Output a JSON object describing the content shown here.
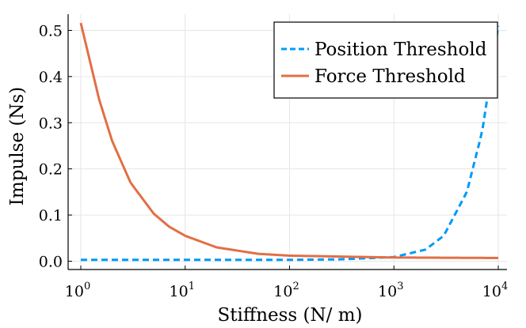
{
  "chart_data": {
    "type": "line",
    "title": "",
    "xlabel": "Stiffness (N/ m)",
    "ylabel": "Impulse (Ns)",
    "xscale": "log",
    "xlim": [
      1,
      10000
    ],
    "ylim": [
      -0.018,
      0.535
    ],
    "grid": true,
    "legend_position": "top-right",
    "x_ticks": [
      {
        "value": 1,
        "base": "10",
        "exp": "0"
      },
      {
        "value": 10,
        "base": "10",
        "exp": "1"
      },
      {
        "value": 100,
        "base": "10",
        "exp": "2"
      },
      {
        "value": 1000,
        "base": "10",
        "exp": "3"
      },
      {
        "value": 10000,
        "base": "10",
        "exp": "4"
      }
    ],
    "y_ticks": [
      {
        "value": 0.0,
        "label": "0.0"
      },
      {
        "value": 0.1,
        "label": "0.1"
      },
      {
        "value": 0.2,
        "label": "0.2"
      },
      {
        "value": 0.3,
        "label": "0.3"
      },
      {
        "value": 0.4,
        "label": "0.4"
      },
      {
        "value": 0.5,
        "label": "0.5"
      }
    ],
    "series": [
      {
        "name": "Position Threshold",
        "color": "#009AFA",
        "style": "dashed",
        "x": [
          1,
          10,
          100,
          300,
          1000,
          2000,
          3000,
          5000,
          7000,
          10000
        ],
        "y": [
          0.003,
          0.003,
          0.003,
          0.004,
          0.009,
          0.025,
          0.055,
          0.15,
          0.28,
          0.51
        ]
      },
      {
        "name": "Force Threshold",
        "color": "#E26F46",
        "style": "solid",
        "x": [
          1,
          1.5,
          2,
          3,
          5,
          7,
          10,
          20,
          50,
          100,
          1000,
          10000
        ],
        "y": [
          0.516,
          0.35,
          0.26,
          0.17,
          0.103,
          0.075,
          0.055,
          0.03,
          0.016,
          0.012,
          0.008,
          0.007
        ]
      }
    ]
  }
}
